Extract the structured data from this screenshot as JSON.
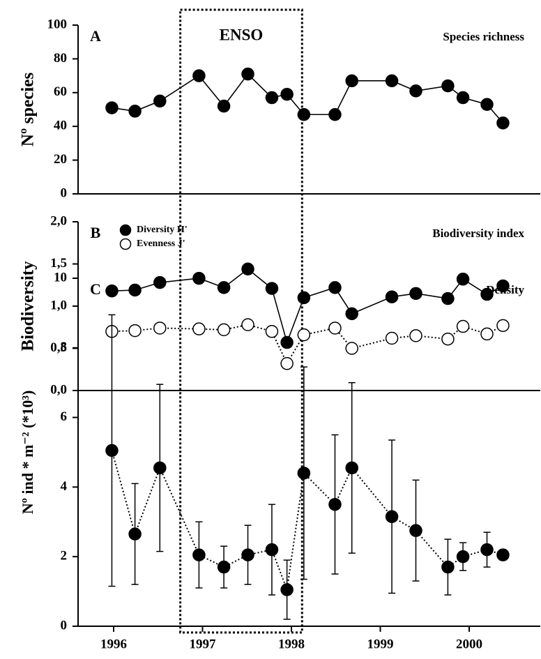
{
  "chart_data": [
    {
      "type": "line",
      "panel": "A",
      "annotation": "Species richness",
      "ylabel": "Nº species",
      "x": [
        1995.98,
        1996.24,
        1996.52,
        1996.96,
        1997.24,
        1997.51,
        1997.78,
        1997.95,
        1998.14,
        1998.49,
        1998.68,
        1999.13,
        1999.4,
        1999.76,
        1999.93,
        2000.2,
        2000.38
      ],
      "series": [
        {
          "name": "Species richness",
          "color": "#000000",
          "line_style": "solid",
          "marker": "filled",
          "values": [
            51,
            49,
            55,
            70,
            52,
            71,
            57,
            59,
            47,
            47,
            67,
            67,
            61,
            64,
            57,
            53,
            42
          ]
        }
      ],
      "xlim": [
        1995.6,
        2000.8
      ],
      "ylim": [
        0,
        100
      ],
      "yticks": [
        0,
        20,
        40,
        60,
        80,
        100
      ],
      "shaded_region": {
        "label": "ENSO",
        "x": [
          1996.75,
          1998.12
        ]
      }
    },
    {
      "type": "line",
      "panel": "B",
      "annotation": "Biodiversity index",
      "ylabel": "Biodiversity",
      "legend": "upper left",
      "x": [
        1995.98,
        1996.24,
        1996.52,
        1996.96,
        1997.24,
        1997.51,
        1997.78,
        1997.95,
        1998.14,
        1998.49,
        1998.68,
        1999.13,
        1999.4,
        1999.76,
        1999.93,
        2000.2,
        2000.38
      ],
      "series": [
        {
          "name": "Diversity H'",
          "color": "#000000",
          "line_style": "solid",
          "marker": "filled",
          "values": [
            1.18,
            1.19,
            1.28,
            1.33,
            1.22,
            1.44,
            1.21,
            0.57,
            1.1,
            1.22,
            0.91,
            1.11,
            1.15,
            1.09,
            1.32,
            1.14,
            1.24
          ]
        },
        {
          "name": "Evenness J'",
          "color": "#000000",
          "line_style": "dotted",
          "marker": "open",
          "values": [
            0.7,
            0.71,
            0.74,
            0.73,
            0.72,
            0.78,
            0.7,
            0.32,
            0.66,
            0.74,
            0.5,
            0.62,
            0.65,
            0.61,
            0.76,
            0.67,
            0.77
          ]
        }
      ],
      "xlim": [
        1995.6,
        2000.8
      ],
      "ylim": [
        0,
        2
      ],
      "yticks": [
        {
          "value": 0,
          "label": "0,0"
        },
        {
          "value": 0.5,
          "label": "0,5"
        },
        {
          "value": 1,
          "label": "1,0"
        },
        {
          "value": 1.5,
          "label": "1,5"
        },
        {
          "value": 2,
          "label": "2,0"
        }
      ]
    },
    {
      "type": "errorbar",
      "panel": "C",
      "annotation": "Density",
      "ylabel": "Nº ind * m⁻² (*10³)",
      "x": [
        1995.98,
        1996.24,
        1996.52,
        1996.96,
        1997.24,
        1997.51,
        1997.78,
        1997.95,
        1998.14,
        1998.49,
        1998.68,
        1999.13,
        1999.4,
        1999.76,
        1999.93,
        2000.2,
        2000.38
      ],
      "series": [
        {
          "name": "Density",
          "color": "#000000",
          "line_style": "dotted",
          "marker": "filled",
          "values": [
            5.05,
            2.65,
            4.55,
            2.05,
            1.7,
            2.05,
            2.2,
            1.05,
            4.4,
            3.5,
            4.55,
            3.15,
            2.75,
            1.7,
            2.0,
            2.2,
            2.05
          ],
          "errors": [
            3.9,
            1.45,
            2.4,
            0.95,
            0.6,
            0.85,
            1.3,
            0.85,
            3.05,
            2.0,
            2.45,
            2.2,
            1.45,
            0.8,
            0.4,
            0.5,
            0.15
          ]
        }
      ],
      "xlim": [
        1995.6,
        2000.8
      ],
      "ylim": [
        0,
        10
      ],
      "yticks": [
        0,
        2,
        4,
        6,
        8,
        10
      ],
      "xticks": [
        1996,
        1997,
        1998,
        1999,
        2000
      ]
    }
  ]
}
